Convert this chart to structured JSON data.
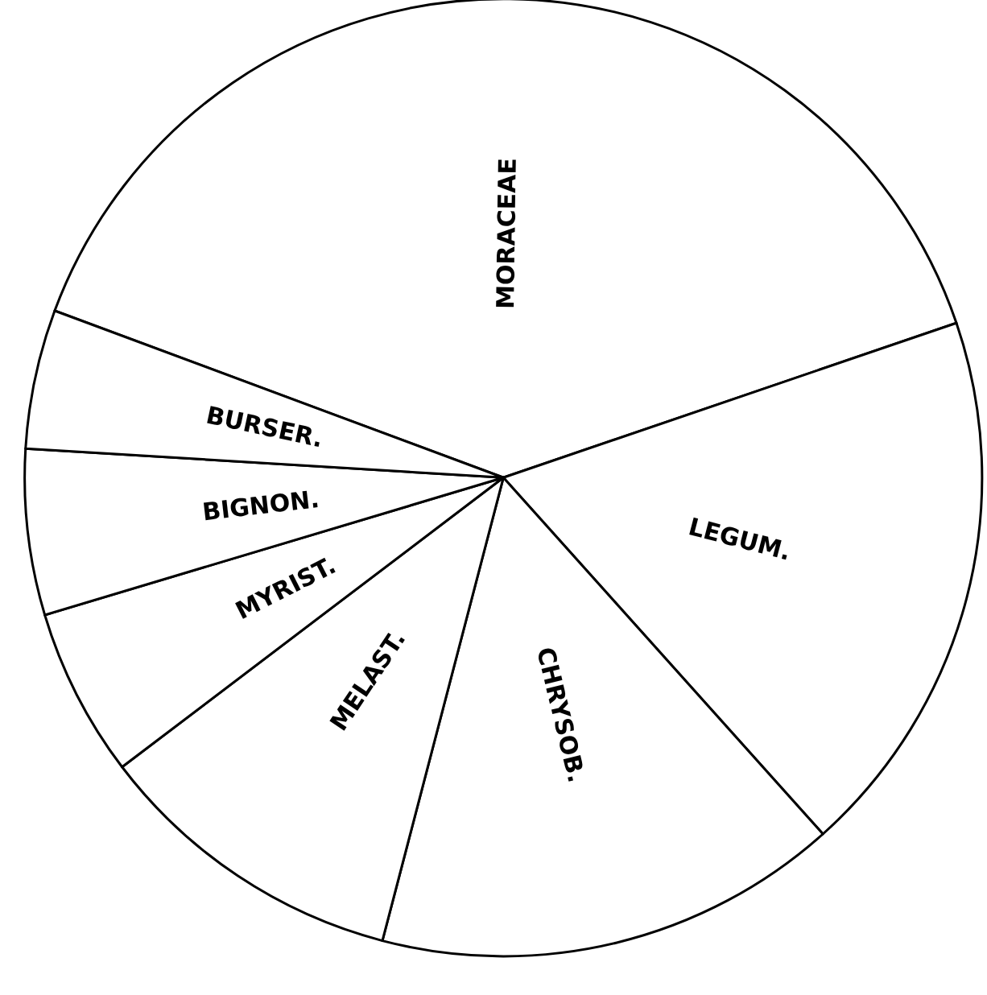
{
  "chart_data": {
    "type": "pie",
    "categories": [
      "MORACEAE",
      "LEGUM.",
      "CHRYSOB.",
      "MELAST.",
      "MYRIST.",
      "BIGNON.",
      "BURSER."
    ],
    "values": [
      39.1,
      18.6,
      15.7,
      10.6,
      5.7,
      5.6,
      4.7
    ],
    "colors": [
      "#ffffff",
      "#ffffff",
      "#ffffff",
      "#ffffff",
      "#ffffff",
      "#ffffff",
      "#ffffff"
    ],
    "legend": false
  }
}
